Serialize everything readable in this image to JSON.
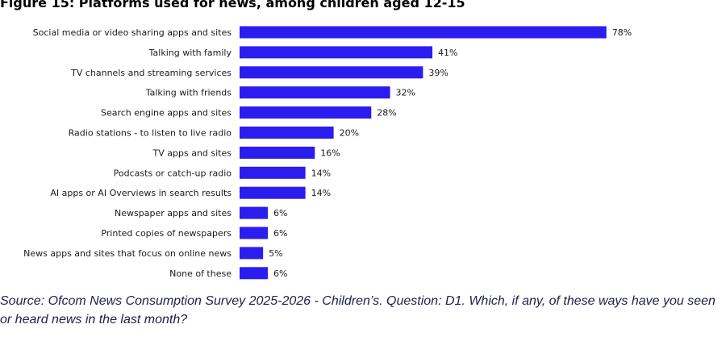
{
  "chart_data": {
    "type": "bar",
    "orientation": "horizontal",
    "title": "Figure 15: Platforms used for news, among children aged 12-15",
    "categories": [
      "Social media or video sharing apps and sites",
      "Talking with family",
      "TV channels and streaming services",
      "Talking with friends",
      "Search engine apps and sites",
      "Radio stations - to listen to live radio",
      "TV apps and sites",
      "Podcasts or catch-up radio",
      "AI apps or AI Overviews in search results",
      "Newspaper apps and sites",
      "Printed copies of newspapers",
      "News apps and sites that focus on online news",
      "None of these"
    ],
    "values": [
      78,
      41,
      39,
      32,
      28,
      20,
      16,
      14,
      14,
      6,
      6,
      5,
      6
    ],
    "value_labels": [
      "78%",
      "41%",
      "39%",
      "32%",
      "28%",
      "20%",
      "16%",
      "14%",
      "14%",
      "6%",
      "6%",
      "5%",
      "6%"
    ],
    "xlim": [
      0,
      100
    ],
    "bar_color": "#2b1cf0",
    "grid": false,
    "legend": "none"
  },
  "source": {
    "text": "Source: Ofcom News Consumption Survey 2025-2026 - Children’s. Question: D1. Which, if any, of these ways have you seen or heard news in the last month?"
  }
}
